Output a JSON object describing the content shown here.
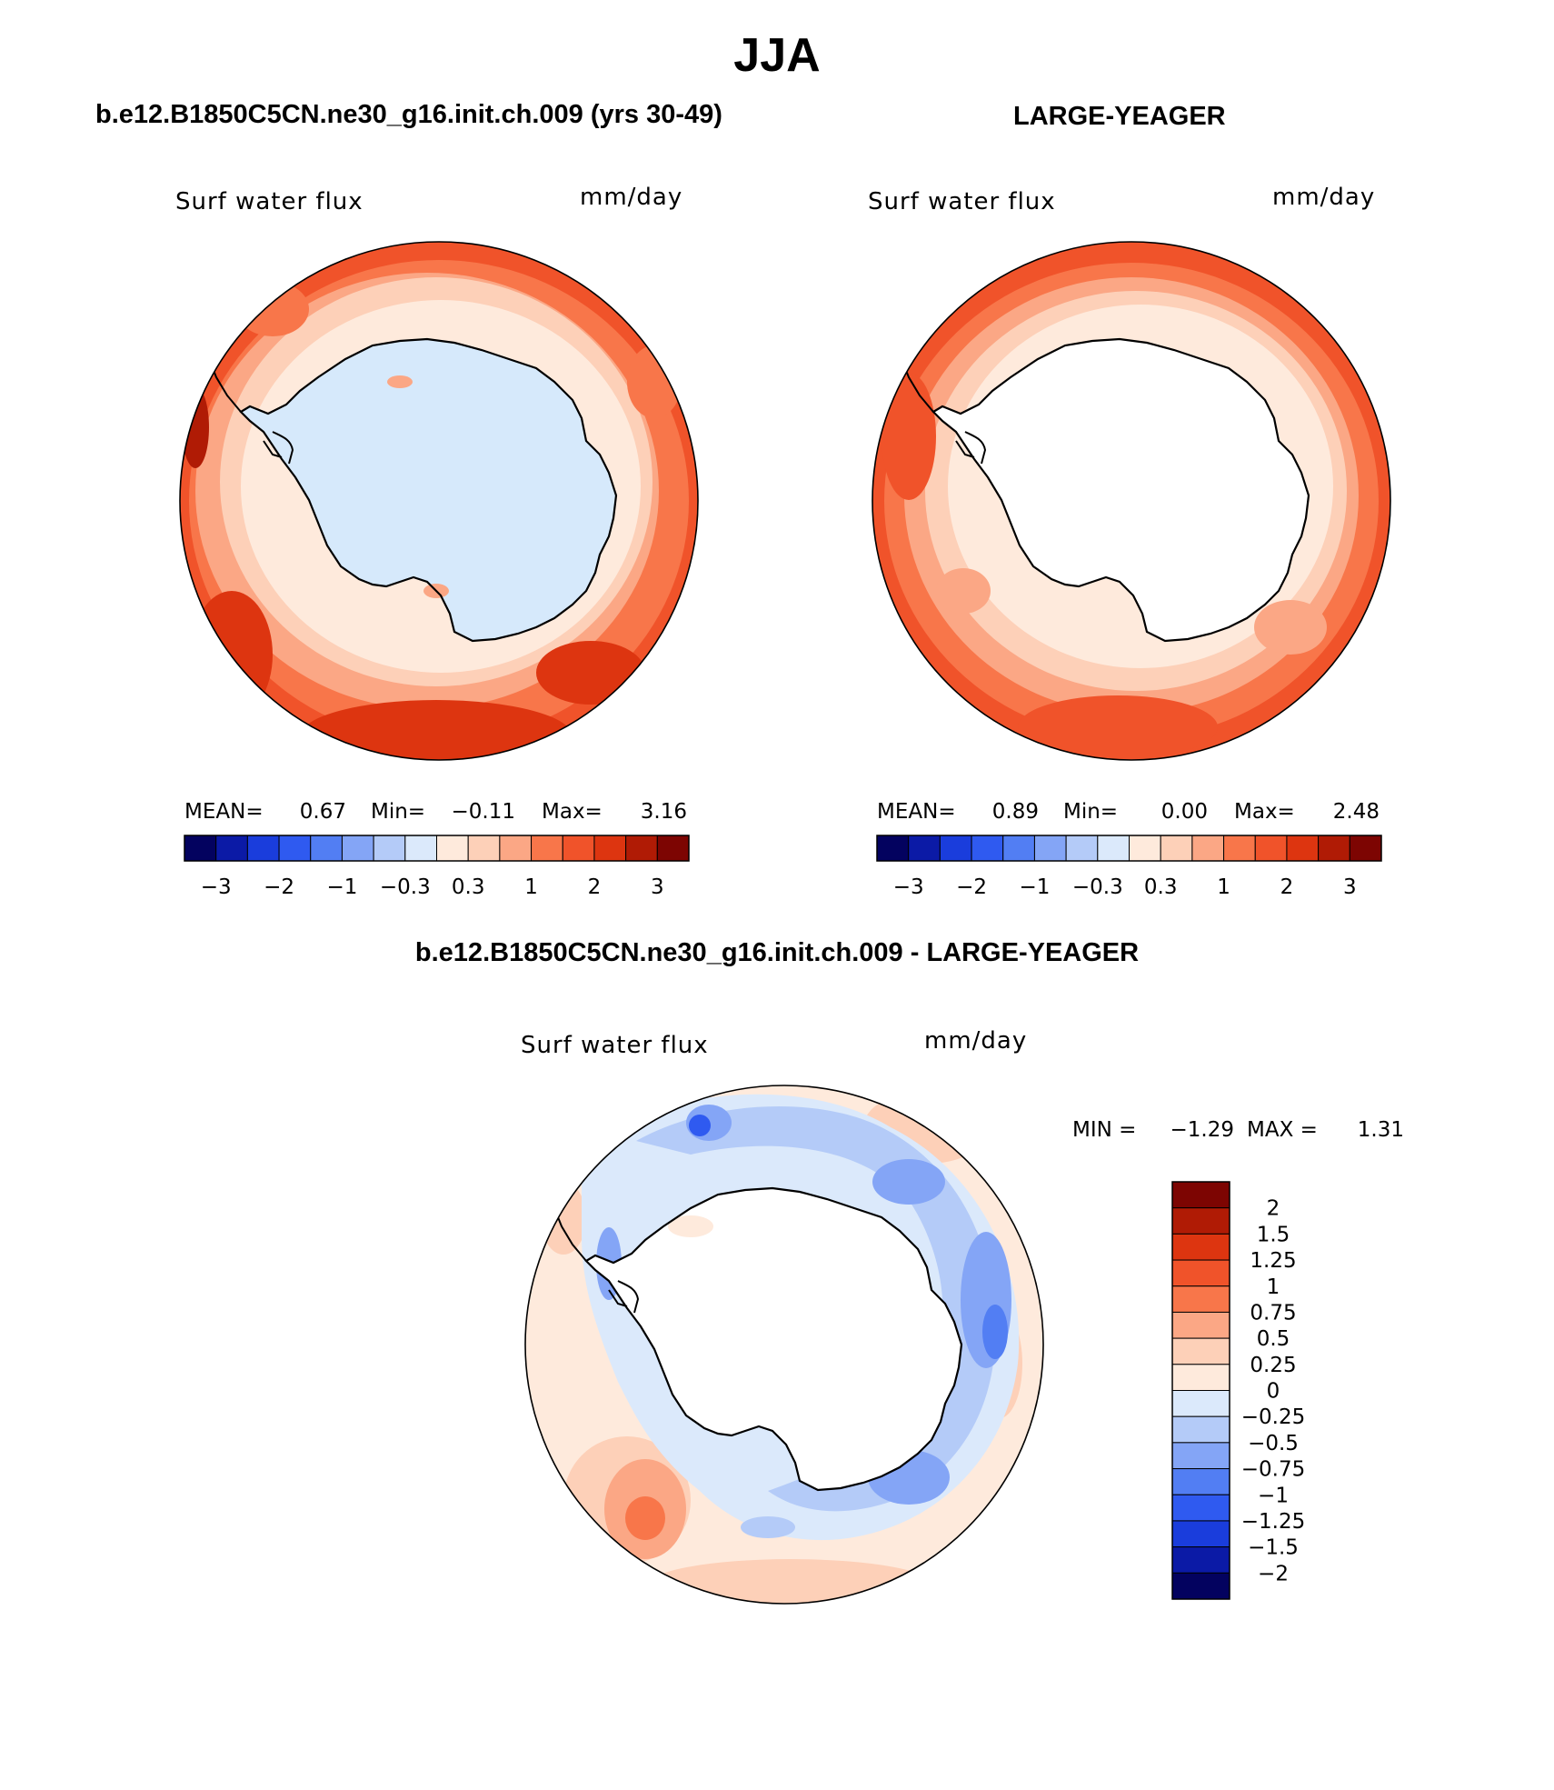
{
  "figure_title": "JJA",
  "panels": [
    {
      "id": "left",
      "case_title": "b.e12.B1850C5CN.ne30_g16.init.ch.009 (yrs 30-49)",
      "variable": "Surf water flux",
      "units": "mm/day",
      "stats": {
        "mean_label": "MEAN=",
        "mean": "0.67",
        "min_label": "Min=",
        "min": "−0.11",
        "max_label": "Max=",
        "max": "3.16"
      },
      "land_color": "#d6e9fb",
      "field": {
        "pattern": "positive-ring",
        "note": "positive flux everywhere over ocean, light near coast rising to 2–3 mm/day in outer ring"
      }
    },
    {
      "id": "right",
      "case_title": "LARGE-YEAGER",
      "variable": "Surf water flux",
      "units": "mm/day",
      "stats": {
        "mean_label": "MEAN=",
        "mean": "0.89",
        "min_label": "Min=",
        "min": "0.00",
        "max_label": "Max=",
        "max": "2.48"
      },
      "land_color": "#ffffff",
      "field": {
        "pattern": "positive-ring",
        "note": "white over continent, light near coast rising to ~2 mm/day in outer ring"
      }
    },
    {
      "id": "diff",
      "case_title": "b.e12.B1850C5CN.ne30_g16.init.ch.009 - LARGE-YEAGER",
      "variable": "Surf water flux",
      "units": "mm/day",
      "stats": {
        "min_label": "MIN =",
        "min": "−1.29",
        "max_label": "MAX =",
        "max": "1.31"
      },
      "land_color": "#ffffff",
      "field": {
        "pattern": "difference",
        "note": "negative band around Antarctica, positive patches in outer ring"
      }
    }
  ],
  "colorbar_horizontal": {
    "colors": [
      "#03025f",
      "#0b1aa6",
      "#1a3ddc",
      "#2f5af0",
      "#527ef3",
      "#84a5f6",
      "#b4cbf8",
      "#dbe9fb",
      "#feeadc",
      "#fdd0b8",
      "#fba785",
      "#f8764a",
      "#f0532a",
      "#dd3510",
      "#b01b05",
      "#7d0502"
    ],
    "tick_labels": [
      "−3",
      "−2",
      "−1",
      "−0.3",
      "0.3",
      "1",
      "2",
      "3"
    ]
  },
  "colorbar_vertical": {
    "colors_top_to_bottom": [
      "#7d0502",
      "#b01b05",
      "#dd3510",
      "#f0532a",
      "#f8764a",
      "#fba785",
      "#fdd0b8",
      "#feeadc",
      "#dbe9fb",
      "#b4cbf8",
      "#84a5f6",
      "#527ef3",
      "#2f5af0",
      "#1a3ddc",
      "#0b1aa6",
      "#03025f"
    ],
    "tick_labels": [
      "2",
      "1.5",
      "1.25",
      "1",
      "0.75",
      "0.5",
      "0.25",
      "0",
      "−0.25",
      "−0.5",
      "−0.75",
      "−1",
      "−1.25",
      "−1.5",
      "−2"
    ]
  },
  "chart_data": {
    "type": "heatmap",
    "projection": "south-polar stereographic",
    "season": "JJA",
    "variable": "Surf water flux",
    "units": "mm/day",
    "panels": [
      {
        "title": "b.e12.B1850C5CN.ne30_g16.init.ch.009 (yrs 30-49)",
        "mean": 0.67,
        "min": -0.11,
        "max": 3.16,
        "contour_levels": [
          -3,
          -2,
          -1,
          -0.3,
          0.3,
          1,
          2,
          3
        ]
      },
      {
        "title": "LARGE-YEAGER",
        "mean": 0.89,
        "min": 0.0,
        "max": 2.48,
        "contour_levels": [
          -3,
          -2,
          -1,
          -0.3,
          0.3,
          1,
          2,
          3
        ]
      },
      {
        "title": "b.e12.B1850C5CN.ne30_g16.init.ch.009 - LARGE-YEAGER",
        "min": -1.29,
        "max": 1.31,
        "contour_levels": [
          -2,
          -1.5,
          -1.25,
          -1,
          -0.75,
          -0.5,
          -0.25,
          0,
          0.25,
          0.5,
          0.75,
          1,
          1.25,
          1.5,
          2
        ]
      }
    ]
  }
}
